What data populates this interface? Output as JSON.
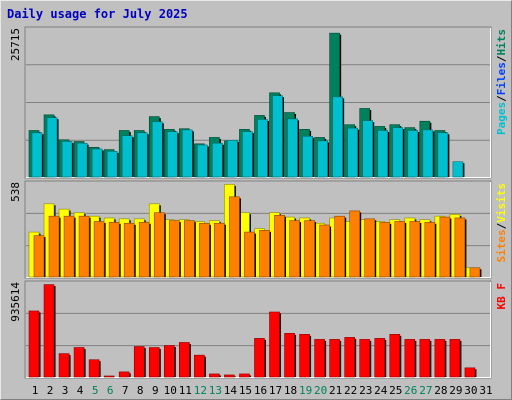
{
  "title": "Daily usage for July 2025",
  "colors": {
    "background": "#c0c0c0",
    "title": "#0000c0",
    "hits": "#00805c",
    "files": "#0040ff",
    "pages": "#00c0d0",
    "visits": "#ffff00",
    "sites": "#ff8000",
    "kbytes": "#ff0000",
    "weekday_label": "#000000",
    "weekend_label": "#00805c"
  },
  "chart_data": [
    {
      "type": "bar",
      "panel": "hits-files-pages",
      "categories": [
        "1",
        "2",
        "3",
        "4",
        "5",
        "6",
        "7",
        "8",
        "9",
        "10",
        "11",
        "12",
        "13",
        "14",
        "15",
        "16",
        "17",
        "18",
        "19",
        "20",
        "21",
        "22",
        "23",
        "24",
        "25",
        "26",
        "27",
        "28",
        "29",
        "30",
        "31"
      ],
      "weekend_days": [
        "5",
        "6",
        "12",
        "13",
        "19",
        "20",
        "26",
        "27"
      ],
      "ylim": [
        0,
        25715
      ],
      "y_tick_label": "25715",
      "legend": [
        "Pages",
        "/",
        "Files",
        "/",
        "Hits"
      ],
      "series": [
        {
          "name": "Hits",
          "values": [
            8200,
            10900,
            6600,
            6300,
            5300,
            4900,
            8200,
            8200,
            10600,
            8400,
            8500,
            5900,
            7000,
            6400,
            8400,
            10800,
            14700,
            11300,
            8400,
            7000,
            25000,
            9200,
            12000,
            8900,
            9200,
            8700,
            9800,
            8200,
            0,
            0,
            0
          ]
        },
        {
          "name": "Files",
          "values": [
            7800,
            10400,
            6300,
            6000,
            5000,
            4600,
            7300,
            7800,
            9700,
            8000,
            8300,
            5700,
            6000,
            6500,
            8000,
            10100,
            14200,
            10200,
            7200,
            6400,
            14000,
            8600,
            9900,
            8200,
            8700,
            8200,
            8300,
            7800,
            0,
            0,
            0
          ]
        },
        {
          "name": "Pages",
          "values": [
            7800,
            10400,
            6300,
            6000,
            5000,
            4600,
            7300,
            7800,
            9700,
            8000,
            8300,
            5700,
            6000,
            6500,
            8000,
            10100,
            14200,
            10200,
            7200,
            6400,
            14000,
            8600,
            9900,
            8200,
            8700,
            8200,
            8300,
            7800,
            2800,
            0,
            0
          ]
        }
      ]
    },
    {
      "type": "bar",
      "panel": "visits-sites",
      "categories": [
        "1",
        "2",
        "3",
        "4",
        "5",
        "6",
        "7",
        "8",
        "9",
        "10",
        "11",
        "12",
        "13",
        "14",
        "15",
        "16",
        "17",
        "18",
        "19",
        "20",
        "21",
        "22",
        "23",
        "24",
        "25",
        "26",
        "27",
        "28",
        "29",
        "30",
        "31"
      ],
      "ylim": [
        0,
        538
      ],
      "y_tick_label": "538",
      "legend": [
        "Sites",
        "/",
        "Visits"
      ],
      "series": [
        {
          "name": "Visits",
          "values": [
            260,
            420,
            390,
            370,
            350,
            340,
            335,
            335,
            420,
            330,
            330,
            320,
            325,
            530,
            370,
            280,
            370,
            345,
            340,
            310,
            340,
            320,
            330,
            320,
            330,
            340,
            330,
            350,
            360,
            58,
            0
          ]
        },
        {
          "name": "Sites",
          "values": [
            240,
            350,
            350,
            350,
            320,
            315,
            310,
            315,
            370,
            325,
            325,
            310,
            310,
            460,
            260,
            270,
            355,
            325,
            325,
            300,
            350,
            380,
            335,
            315,
            320,
            320,
            315,
            345,
            340,
            58,
            0
          ]
        }
      ]
    },
    {
      "type": "bar",
      "panel": "kbytes",
      "categories": [
        "1",
        "2",
        "3",
        "4",
        "5",
        "6",
        "7",
        "8",
        "9",
        "10",
        "11",
        "12",
        "13",
        "14",
        "15",
        "16",
        "17",
        "18",
        "19",
        "20",
        "21",
        "22",
        "23",
        "24",
        "25",
        "26",
        "27",
        "28",
        "29",
        "30",
        "31"
      ],
      "ylim": [
        0,
        935614
      ],
      "y_tick_label": "935614",
      "legend": [
        "KB",
        "F"
      ],
      "series": [
        {
          "name": "KBytes",
          "values": [
            660000,
            920000,
            240000,
            300000,
            180000,
            20000,
            60000,
            310000,
            300000,
            320000,
            350000,
            225000,
            40000,
            30000,
            40000,
            390000,
            650000,
            440000,
            430000,
            380000,
            380000,
            400000,
            380000,
            390000,
            430000,
            380000,
            380000,
            380000,
            380000,
            100000,
            0
          ]
        }
      ]
    }
  ]
}
